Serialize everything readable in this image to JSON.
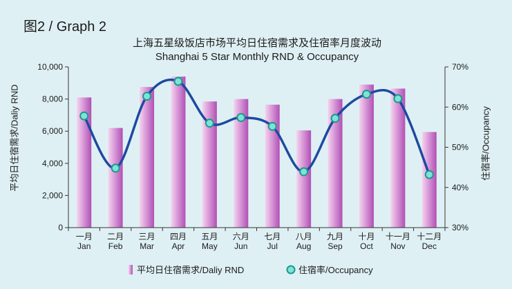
{
  "graph_label": "图2 / Graph 2",
  "chart_data": {
    "type": "bar+line",
    "title_cn": "上海五星级饭店市场平均日住宿需求及住宿率月度波动",
    "title_en": "Shanghai 5 Star Monthly RND & Occupancy",
    "categories_cn": [
      "一月",
      "二月",
      "三月",
      "四月",
      "五月",
      "六月",
      "七月",
      "八月",
      "九月",
      "十月",
      "十一月",
      "十二月"
    ],
    "categories_en": [
      "Jan",
      "Feb",
      "Mar",
      "Apr",
      "May",
      "Jun",
      "Jul",
      "Aug",
      "Sep",
      "Oct",
      "Nov",
      "Dec"
    ],
    "series": [
      {
        "name": "平均日住宿需求/Daliy RND",
        "type": "bar",
        "axis": "left",
        "values": [
          8100,
          6200,
          8750,
          9400,
          7850,
          8000,
          7650,
          6050,
          8000,
          8900,
          8650,
          5950
        ]
      },
      {
        "name": "住宿率/Occupancy",
        "type": "line",
        "axis": "right",
        "values": [
          57.8,
          44.8,
          62.7,
          66.4,
          56.0,
          57.4,
          55.2,
          43.9,
          57.2,
          63.2,
          62.1,
          43.2
        ]
      }
    ],
    "ylabel_left": "平均日住宿需求/Daliy RND",
    "ylabel_right": "住宿率/Occupancy",
    "ylim_left": [
      0,
      10000
    ],
    "ylim_right": [
      30,
      70
    ],
    "yticks_left": [
      "0",
      "2,000",
      "4,000",
      "6,000",
      "8,000",
      "10,000"
    ],
    "yticks_right": [
      "30%",
      "40%",
      "50%",
      "60%",
      "70%"
    ],
    "legend_placement": "bottom",
    "grid": false,
    "colors": {
      "bar_light": "#f4d4ee",
      "bar_mid": "#d898d8",
      "bar_dark": "#b050b4",
      "line": "#1d4aa0",
      "marker_fill": "#7fe2d8",
      "marker_stroke": "#1a9a8c",
      "axis": "#333333",
      "background": "#dff0f4"
    }
  }
}
